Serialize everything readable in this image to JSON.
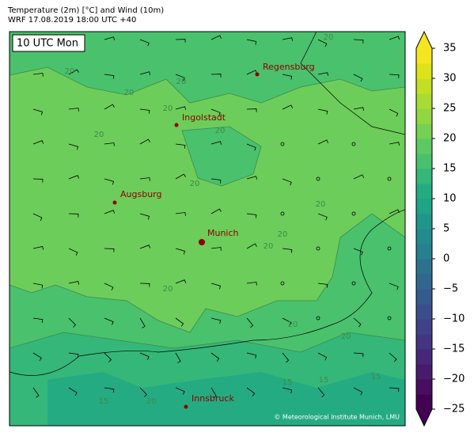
{
  "header": {
    "title": "Temperature (2m) [°C] and Wind (10m)",
    "subtitle": "WRF 17.08.2019 18:00 UTC +40"
  },
  "map": {
    "time_label": "10 UTC Mon",
    "cities": [
      "Regensburg",
      "Ingolstadt",
      "Augsburg",
      "Munich",
      "Innsbruck"
    ],
    "contour_labels": [
      "20",
      "20",
      "20",
      "20",
      "20",
      "20",
      "20",
      "20",
      "20",
      "20",
      "20",
      "20",
      "20",
      "20",
      "15",
      "15",
      "15",
      "15",
      "20"
    ],
    "credit": "© Meteorological Institute Munich, LMU"
  },
  "colorbar": {
    "lim": [
      -25,
      35
    ],
    "ticks": [
      35,
      30,
      25,
      20,
      15,
      10,
      5,
      0,
      {
        "value": -5,
        "label": "−5"
      },
      {
        "value": -10,
        "label": "−10"
      },
      {
        "value": -15,
        "label": "−15"
      },
      {
        "value": -20,
        "label": "−20"
      },
      {
        "value": -25,
        "label": "−25"
      }
    ],
    "colors": [
      "#440154",
      "#470e61",
      "#481b6d",
      "#472878",
      "#443582",
      "#3f4289",
      "#3b4e8b",
      "#355b8d",
      "#31678e",
      "#2c728e",
      "#27808e",
      "#238a8d",
      "#1f968b",
      "#20a386",
      "#25ab82",
      "#35b779",
      "#48c16e",
      "#5ec962",
      "#76d054",
      "#90d743",
      "#a8db34",
      "#c2df23",
      "#dde318",
      "#f3e620"
    ]
  }
}
